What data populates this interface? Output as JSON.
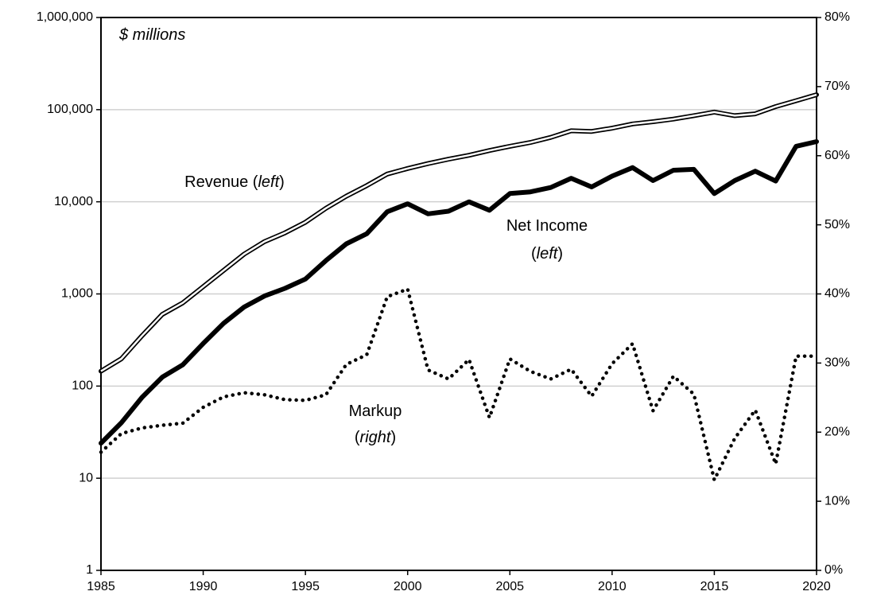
{
  "chart_data": {
    "type": "line",
    "x": [
      1985,
      1986,
      1987,
      1988,
      1989,
      1990,
      1991,
      1992,
      1993,
      1994,
      1995,
      1996,
      1997,
      1998,
      1999,
      2000,
      2001,
      2002,
      2003,
      2004,
      2005,
      2006,
      2007,
      2008,
      2009,
      2010,
      2011,
      2012,
      2013,
      2014,
      2015,
      2016,
      2017,
      2018,
      2019,
      2020
    ],
    "xlim": [
      1985,
      2020
    ],
    "xticks": [
      1985,
      1990,
      1995,
      2000,
      2005,
      2010,
      2015,
      2020
    ],
    "ylim": [
      1,
      1000000
    ],
    "ylog": true,
    "yticks": [
      1,
      10,
      100,
      {
        "value": 1000,
        "label": "1,000"
      },
      {
        "value": 10000,
        "label": "10,000"
      },
      {
        "value": 100000,
        "label": "100,000"
      },
      {
        "value": 1000000,
        "label": "1,000,000"
      }
    ],
    "y2lim": [
      0,
      80
    ],
    "y2ticks": [
      {
        "value": 0,
        "label": "0%"
      },
      {
        "value": 10,
        "label": "10%"
      },
      {
        "value": 20,
        "label": "20%"
      },
      {
        "value": 30,
        "label": "30%"
      },
      {
        "value": 40,
        "label": "40%"
      },
      {
        "value": 50,
        "label": "50%"
      },
      {
        "value": 60,
        "label": "60%"
      },
      {
        "value": 70,
        "label": "70%"
      },
      {
        "value": 80,
        "label": "80%"
      }
    ],
    "grid": true,
    "series": [
      {
        "style": "double",
        "color": "#000000",
        "values": [
          145,
          198,
          350,
          600,
          800,
          1200,
          1800,
          2700,
          3700,
          4600,
          6000,
          8500,
          11500,
          15000,
          20000,
          23000,
          26000,
          29000,
          32000,
          36000,
          40000,
          44000,
          50000,
          59000,
          58000,
          63000,
          70000,
          74000,
          79000,
          86000,
          94000,
          86000,
          90000,
          108000,
          125000,
          145000
        ]
      },
      {
        "style": "solid",
        "color": "#000000",
        "values": [
          24,
          40,
          75,
          125,
          170,
          290,
          480,
          720,
          950,
          1150,
          1450,
          2300,
          3500,
          4500,
          7800,
          9500,
          7400,
          7900,
          10000,
          8100,
          12300,
          12800,
          14300,
          18000,
          14500,
          19000,
          23500,
          17000,
          22000,
          22500,
          12300,
          17000,
          21500,
          16800,
          40000,
          45000
        ]
      },
      {
        "style": "dotted",
        "color": "#000000",
        "axis": "y2",
        "values": [
          17.1,
          19.8,
          20.6,
          21,
          21.3,
          23.6,
          25.1,
          25.7,
          25.4,
          24.7,
          24.6,
          25.4,
          29.8,
          31.2,
          39.6,
          40.7,
          29,
          27.7,
          30.5,
          22.1,
          30.6,
          28.8,
          27.7,
          29.1,
          25.2,
          29.9,
          32.8,
          23.1,
          28.1,
          25.5,
          13.1,
          19.1,
          23.2,
          15.4,
          31,
          31
        ]
      }
    ],
    "annotations": [
      {
        "parts": [
          "$ millions"
        ]
      },
      {
        "parts": [
          "Revenue (",
          "left",
          ")"
        ]
      },
      {
        "parts": [
          "Net Income"
        ]
      },
      {
        "parts": [
          "(",
          "left",
          ")"
        ]
      },
      {
        "parts": [
          "Markup"
        ]
      },
      {
        "parts": [
          "(",
          "right",
          ")"
        ]
      }
    ]
  }
}
